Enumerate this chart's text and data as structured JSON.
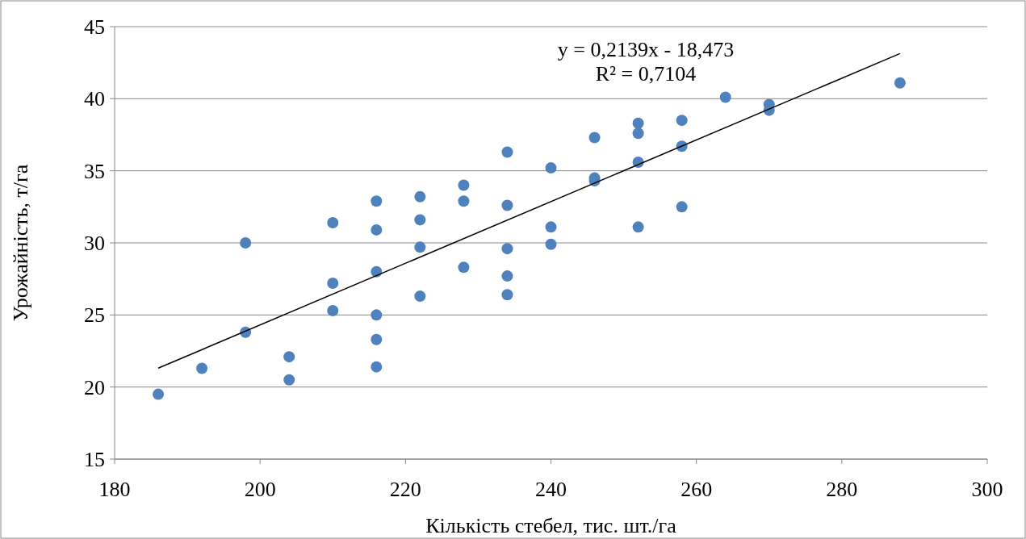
{
  "chart_data": {
    "type": "scatter",
    "xlabel": "Кількість стебел, тис. шт./га",
    "ylabel": "Урожайність, т/га",
    "annotations": [
      "y = 0,2139x - 18,473",
      "R² = 0,7104"
    ],
    "xlim": [
      180,
      300
    ],
    "xticks": [
      180,
      200,
      220,
      240,
      260,
      280,
      300
    ],
    "ylim": [
      15,
      45
    ],
    "yticks": [
      15,
      20,
      25,
      30,
      35,
      40,
      45
    ],
    "grid": "y",
    "marker": "circle",
    "series": [
      {
        "color": "#4f81bd",
        "x": [
          186,
          192,
          198,
          198,
          204,
          204,
          210,
          210,
          210,
          216,
          216,
          216,
          216,
          216,
          216,
          222,
          222,
          222,
          222,
          228,
          228,
          228,
          234,
          234,
          234,
          234,
          234,
          240,
          240,
          240,
          246,
          246,
          246,
          252,
          252,
          252,
          252,
          258,
          258,
          258,
          264,
          270,
          270,
          288
        ],
        "values": [
          19.5,
          21.3,
          30.0,
          23.8,
          22.1,
          20.5,
          31.4,
          27.2,
          25.3,
          32.9,
          30.9,
          28.0,
          25.0,
          23.3,
          21.4,
          33.2,
          31.6,
          29.7,
          26.3,
          34.0,
          32.9,
          28.3,
          36.3,
          32.6,
          29.6,
          27.7,
          26.4,
          35.2,
          31.1,
          29.9,
          37.3,
          34.5,
          34.3,
          38.3,
          37.6,
          35.6,
          31.1,
          38.5,
          36.7,
          32.5,
          40.1,
          39.6,
          39.2,
          41.1
        ]
      },
      {
        "type": "line",
        "color": "#000000",
        "marker": "none",
        "x": [
          186,
          288
        ],
        "values": [
          21.31,
          43.13
        ]
      }
    ]
  }
}
